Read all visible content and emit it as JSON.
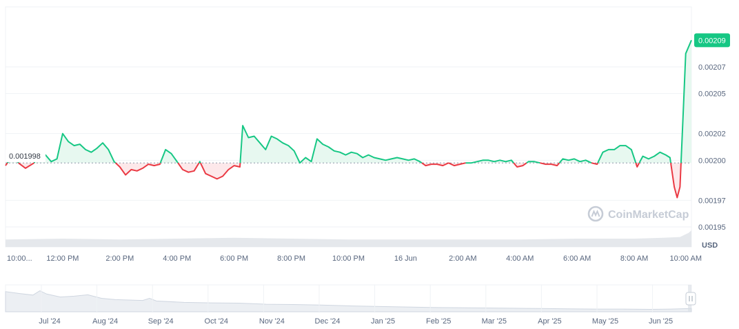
{
  "chart_data": {
    "type": "line",
    "unit": "USD",
    "watermark": "CoinMarketCap",
    "baseline_value": 0.001998,
    "baseline_label": "0.001998",
    "current_value": 0.00209,
    "current_label": "0.00209",
    "ylim": [
      0.001935,
      0.002115
    ],
    "y_ticks": [
      {
        "value": 0.00207,
        "label": "0.00207"
      },
      {
        "value": 0.00205,
        "label": "0.00205"
      },
      {
        "value": 0.00202,
        "label": "0.00202"
      },
      {
        "value": 0.002,
        "label": "0.00200"
      },
      {
        "value": 0.00197,
        "label": "0.00197"
      },
      {
        "value": 0.00195,
        "label": "0.00195"
      }
    ],
    "x_range_hours": [
      0,
      24
    ],
    "x_ticks": [
      {
        "t": 0.5,
        "label": "10:00..."
      },
      {
        "t": 2.0,
        "label": "12:00 PM"
      },
      {
        "t": 4.0,
        "label": "2:00 PM"
      },
      {
        "t": 6.0,
        "label": "4:00 PM"
      },
      {
        "t": 8.0,
        "label": "6:00 PM"
      },
      {
        "t": 10.0,
        "label": "8:00 PM"
      },
      {
        "t": 12.0,
        "label": "10:00 PM"
      },
      {
        "t": 14.0,
        "label": "16 Jun"
      },
      {
        "t": 16.0,
        "label": "2:00 AM"
      },
      {
        "t": 18.0,
        "label": "4:00 AM"
      },
      {
        "t": 20.0,
        "label": "6:00 AM"
      },
      {
        "t": 22.0,
        "label": "8:00 AM"
      },
      {
        "t": 24.0,
        "label": "10:00 AM"
      }
    ],
    "series": [
      {
        "points": [
          [
            0.0,
            0.001996
          ],
          [
            0.3,
            0.002005
          ],
          [
            0.45,
            0.001998
          ],
          [
            0.7,
            0.001994
          ],
          [
            1.0,
            0.001998
          ],
          [
            1.2,
            0.002006
          ],
          [
            1.4,
            0.002004
          ],
          [
            1.6,
            0.001999
          ],
          [
            1.8,
            0.002001
          ],
          [
            2.0,
            0.00202
          ],
          [
            2.2,
            0.002014
          ],
          [
            2.4,
            0.002011
          ],
          [
            2.6,
            0.002012
          ],
          [
            2.8,
            0.002008
          ],
          [
            3.0,
            0.002006
          ],
          [
            3.2,
            0.002009
          ],
          [
            3.4,
            0.002013
          ],
          [
            3.6,
            0.002008
          ],
          [
            3.8,
            0.001999
          ],
          [
            4.0,
            0.001995
          ],
          [
            4.2,
            0.001989
          ],
          [
            4.4,
            0.001993
          ],
          [
            4.6,
            0.001992
          ],
          [
            4.8,
            0.001994
          ],
          [
            5.0,
            0.001997
          ],
          [
            5.2,
            0.001996
          ],
          [
            5.4,
            0.001997
          ],
          [
            5.6,
            0.002008
          ],
          [
            5.8,
            0.002005
          ],
          [
            6.0,
            0.001999
          ],
          [
            6.2,
            0.001993
          ],
          [
            6.4,
            0.001991
          ],
          [
            6.6,
            0.001992
          ],
          [
            6.8,
            0.001999
          ],
          [
            7.0,
            0.00199
          ],
          [
            7.2,
            0.001988
          ],
          [
            7.4,
            0.001986
          ],
          [
            7.6,
            0.001988
          ],
          [
            7.8,
            0.001993
          ],
          [
            8.0,
            0.001996
          ],
          [
            8.2,
            0.001995
          ],
          [
            8.3,
            0.002026
          ],
          [
            8.5,
            0.002017
          ],
          [
            8.7,
            0.002018
          ],
          [
            8.9,
            0.002013
          ],
          [
            9.1,
            0.002008
          ],
          [
            9.3,
            0.002018
          ],
          [
            9.5,
            0.002016
          ],
          [
            9.7,
            0.002013
          ],
          [
            9.9,
            0.002011
          ],
          [
            10.1,
            0.002007
          ],
          [
            10.3,
            0.001998
          ],
          [
            10.5,
            0.002002
          ],
          [
            10.7,
            0.001999
          ],
          [
            10.9,
            0.002016
          ],
          [
            11.1,
            0.002012
          ],
          [
            11.3,
            0.00201
          ],
          [
            11.5,
            0.002007
          ],
          [
            11.7,
            0.002006
          ],
          [
            11.9,
            0.002004
          ],
          [
            12.1,
            0.002006
          ],
          [
            12.3,
            0.002005
          ],
          [
            12.5,
            0.002002
          ],
          [
            12.7,
            0.002004
          ],
          [
            12.9,
            0.002002
          ],
          [
            13.1,
            0.002001
          ],
          [
            13.3,
            0.002
          ],
          [
            13.5,
            0.002001
          ],
          [
            13.7,
            0.002002
          ],
          [
            13.9,
            0.002001
          ],
          [
            14.1,
            0.002
          ],
          [
            14.3,
            0.002001
          ],
          [
            14.5,
            0.001999
          ],
          [
            14.7,
            0.001996
          ],
          [
            14.9,
            0.001997
          ],
          [
            15.1,
            0.001997
          ],
          [
            15.3,
            0.001996
          ],
          [
            15.5,
            0.001998
          ],
          [
            15.7,
            0.001996
          ],
          [
            15.9,
            0.001997
          ],
          [
            16.1,
            0.001998
          ],
          [
            16.3,
            0.001998
          ],
          [
            16.5,
            0.001999
          ],
          [
            16.7,
            0.002
          ],
          [
            16.9,
            0.002
          ],
          [
            17.1,
            0.001999
          ],
          [
            17.3,
            0.002
          ],
          [
            17.5,
            0.001999
          ],
          [
            17.7,
            0.002
          ],
          [
            17.9,
            0.001995
          ],
          [
            18.1,
            0.001996
          ],
          [
            18.3,
            0.001999
          ],
          [
            18.5,
            0.001999
          ],
          [
            18.7,
            0.001998
          ],
          [
            18.9,
            0.001997
          ],
          [
            19.1,
            0.001997
          ],
          [
            19.3,
            0.001996
          ],
          [
            19.5,
            0.002001
          ],
          [
            19.7,
            0.002
          ],
          [
            19.9,
            0.002001
          ],
          [
            20.1,
            0.001999
          ],
          [
            20.3,
            0.002
          ],
          [
            20.5,
            0.001998
          ],
          [
            20.7,
            0.001997
          ],
          [
            20.9,
            0.002006
          ],
          [
            21.1,
            0.002008
          ],
          [
            21.3,
            0.002008
          ],
          [
            21.5,
            0.002011
          ],
          [
            21.7,
            0.002011
          ],
          [
            21.9,
            0.002008
          ],
          [
            22.1,
            0.001995
          ],
          [
            22.3,
            0.002003
          ],
          [
            22.5,
            0.002001
          ],
          [
            22.7,
            0.002003
          ],
          [
            22.9,
            0.002006
          ],
          [
            23.1,
            0.002004
          ],
          [
            23.25,
            0.002002
          ],
          [
            23.4,
            0.00198
          ],
          [
            23.5,
            0.001972
          ],
          [
            23.6,
            0.00198
          ],
          [
            23.7,
            0.00203
          ],
          [
            23.8,
            0.00208
          ],
          [
            24.0,
            0.00209
          ]
        ]
      }
    ],
    "volume": [
      [
        0.0,
        0.45
      ],
      [
        2.0,
        0.5
      ],
      [
        4.0,
        0.45
      ],
      [
        6.0,
        0.5
      ],
      [
        8.0,
        0.55
      ],
      [
        10.0,
        0.5
      ],
      [
        12.0,
        0.45
      ],
      [
        14.0,
        0.45
      ],
      [
        16.0,
        0.45
      ],
      [
        18.0,
        0.45
      ],
      [
        20.0,
        0.5
      ],
      [
        22.0,
        0.5
      ],
      [
        23.0,
        0.55
      ],
      [
        23.6,
        0.6
      ],
      [
        23.9,
        0.85
      ],
      [
        24.0,
        1.0
      ]
    ],
    "navigator": {
      "ticks": [
        "Jul '24",
        "Aug '24",
        "Sep '24",
        "Oct '24",
        "Nov '24",
        "Dec '24",
        "Jan '25",
        "Feb '25",
        "Mar '25",
        "Apr '25",
        "May '25",
        "Jun '25"
      ],
      "series": [
        [
          0.0,
          0.75
        ],
        [
          0.02,
          0.68
        ],
        [
          0.04,
          0.62
        ],
        [
          0.05,
          0.78
        ],
        [
          0.06,
          0.66
        ],
        [
          0.08,
          0.55
        ],
        [
          0.1,
          0.58
        ],
        [
          0.12,
          0.63
        ],
        [
          0.14,
          0.5
        ],
        [
          0.16,
          0.45
        ],
        [
          0.2,
          0.42
        ],
        [
          0.21,
          0.5
        ],
        [
          0.22,
          0.4
        ],
        [
          0.26,
          0.35
        ],
        [
          0.3,
          0.33
        ],
        [
          0.34,
          0.32
        ],
        [
          0.38,
          0.28
        ],
        [
          0.42,
          0.27
        ],
        [
          0.46,
          0.25
        ],
        [
          0.5,
          0.22
        ],
        [
          0.54,
          0.2
        ],
        [
          0.58,
          0.18
        ],
        [
          0.62,
          0.16
        ],
        [
          0.66,
          0.15
        ],
        [
          0.7,
          0.14
        ],
        [
          0.74,
          0.13
        ],
        [
          0.78,
          0.12
        ],
        [
          0.82,
          0.11
        ],
        [
          0.86,
          0.1
        ],
        [
          0.9,
          0.1
        ],
        [
          0.94,
          0.09
        ],
        [
          0.97,
          0.1
        ],
        [
          1.0,
          0.12
        ]
      ],
      "selected_fraction": [
        0.997,
        1.0
      ]
    }
  },
  "colors": {
    "up": "#16c784",
    "down": "#ea3943",
    "up_fill": "#e7f8f0",
    "down_fill": "#fde8ea",
    "grid": "#eff2f5",
    "axis_text": "#58667e",
    "volume": "#e5e8ec",
    "navigator_fill": "#eceff3",
    "navigator_line": "#cfd6e0"
  }
}
